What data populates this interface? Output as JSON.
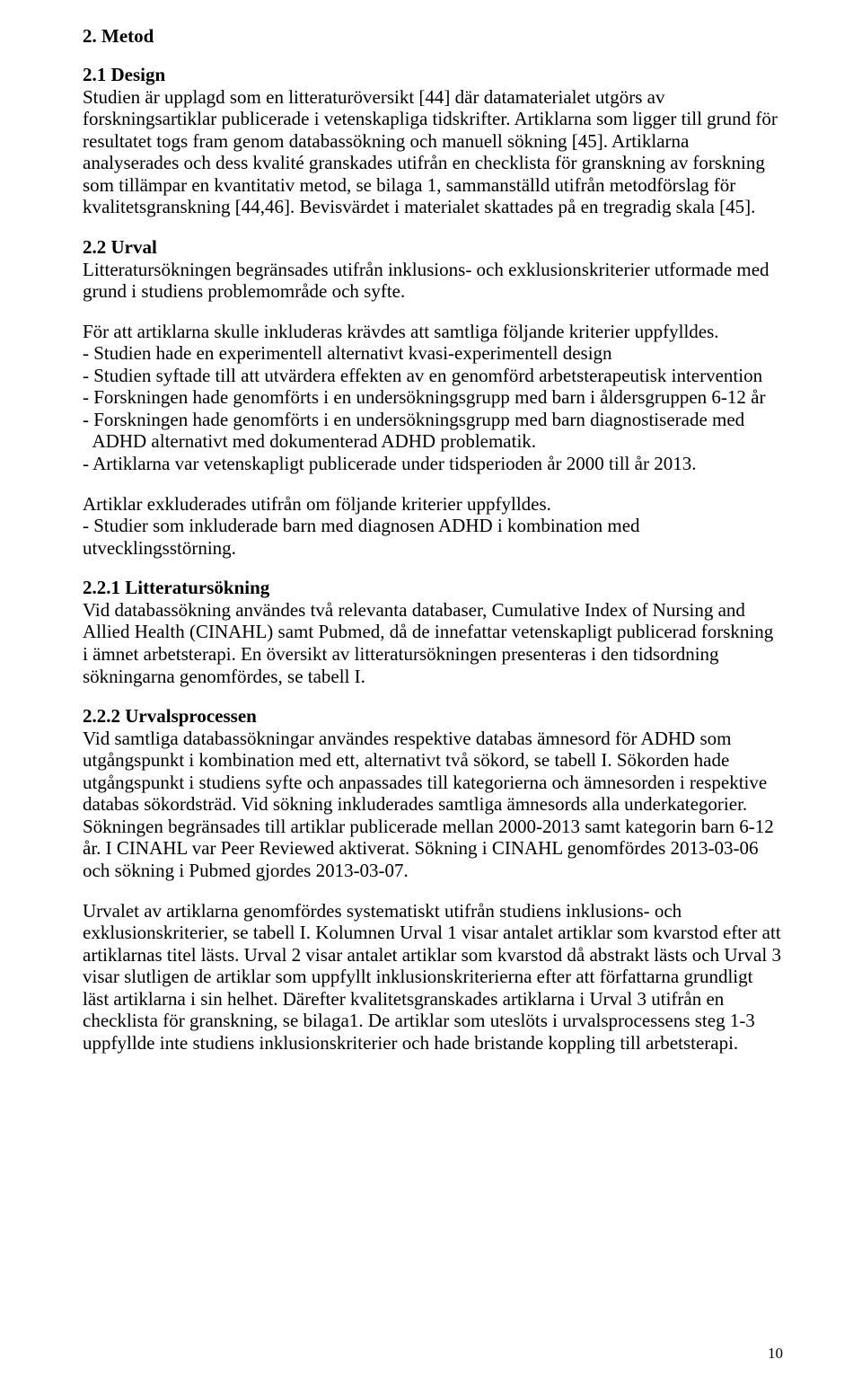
{
  "h_metod": "2. Metod",
  "h_design": "2.1 Design",
  "p_design": "Studien är upplagd som en litteraturöversikt [44] där datamaterialet utgörs av forskningsartiklar publicerade i vetenskapliga tidskrifter. Artiklarna som ligger till grund för resultatet togs fram genom databassökning och manuell sökning [45]. Artiklarna analyserades och dess kvalité granskades utifrån en checklista för granskning av forskning som tillämpar en kvantitativ metod, se bilaga 1, sammanställd utifrån metodförslag för kvalitetsgranskning [44,46]. Bevisvärdet i materialet skattades på en tregradig skala [45].",
  "h_urval": "2.2 Urval",
  "p_urval": "Litteratursökningen begränsades utifrån inklusions- och exklusionskriterier utformade med grund i studiens problemområde och syfte.",
  "p_incl_lead": "För att artiklarna skulle inkluderas krävdes att samtliga följande kriterier uppfylldes.",
  "incl": [
    "- Studien hade en experimentell alternativt kvasi-experimentell design",
    "- Studien syftade till att utvärdera effekten av en genomförd arbetsterapeutisk intervention",
    "- Forskningen hade genomförts i en undersökningsgrupp med barn i åldersgruppen 6-12 år",
    "- Forskningen hade genomförts i en undersökningsgrupp med barn diagnostiserade med",
    "  ADHD alternativt med dokumenterad ADHD problematik.",
    "- Artiklarna var vetenskapligt publicerade under tidsperioden år 2000 till år 2013."
  ],
  "p_excl_lead": "Artiklar exkluderades utifrån om följande kriterier uppfylldes.",
  "excl": [
    "- Studier som inkluderade barn med diagnosen ADHD i kombination med utvecklingsstörning."
  ],
  "h_litsok": "2.2.1 Litteratursökning",
  "p_litsok": "Vid databassökning användes två relevanta databaser, Cumulative Index of Nursing and Allied Health (CINAHL) samt Pubmed, då de innefattar vetenskapligt publicerad forskning i ämnet arbetsterapi. En översikt av litteratursökningen presenteras i den tidsordning sökningarna genomfördes, se tabell I.",
  "h_urvproc": "2.2.2 Urvalsprocessen",
  "p_urvproc": "Vid samtliga databassökningar användes respektive databas ämnesord för ADHD som utgångspunkt i kombination med ett, alternativt två sökord, se tabell I. Sökorden hade utgångspunkt i studiens syfte och anpassades till kategorierna och ämnesorden i respektive databas sökordsträd. Vid sökning inkluderades samtliga ämnesords alla underkategorier. Sökningen begränsades till artiklar publicerade mellan 2000-2013 samt kategorin barn 6-12 år. I CINAHL var Peer Reviewed aktiverat. Sökning i CINAHL genomfördes 2013-03-06 och sökning i Pubmed gjordes 2013-03-07.",
  "p_urvproc2": "Urvalet av artiklarna genomfördes systematiskt utifrån studiens inklusions- och exklusionskriterier, se tabell I. Kolumnen Urval 1 visar antalet artiklar som kvarstod efter att artiklarnas titel lästs. Urval 2 visar antalet artiklar som kvarstod då abstrakt lästs och Urval 3 visar slutligen de artiklar som uppfyllt inklusionskriterierna efter att författarna grundligt läst artiklarna i sin helhet. Därefter kvalitetsgranskades artiklarna i Urval 3 utifrån en checklista för granskning, se bilaga1. De artiklar som uteslöts i urvalsprocessens steg 1-3 uppfyllde inte studiens inklusionskriterier och hade bristande koppling till arbetsterapi.",
  "page_number": "10"
}
